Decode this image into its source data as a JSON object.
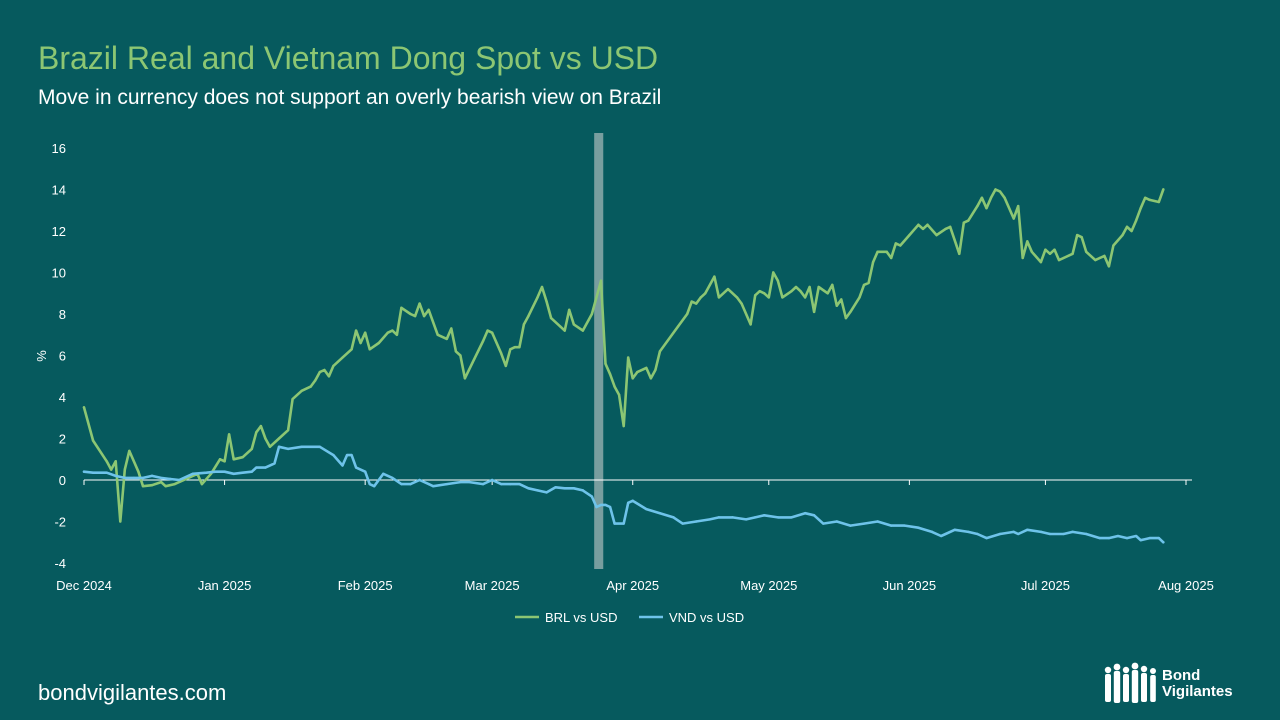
{
  "title": "Brazil Real and Vietnam Dong Spot vs USD",
  "subtitle": "Move in currency does not support an overly bearish view on Brazil",
  "footer": {
    "url": "bondvigilantes.com"
  },
  "logo": {
    "line1": "Bond",
    "line2": "Vigilantes"
  },
  "colors": {
    "background": "#065a5e",
    "title": "#8cc673",
    "brl": "#8cc673",
    "vnd": "#6ec3ea",
    "highlight": "#9fb5b6"
  },
  "chart_data": {
    "type": "line",
    "title": "Brazil Real and Vietnam Dong Spot vs USD",
    "xlabel": "",
    "ylabel": "%",
    "ylim": [
      -4,
      16
    ],
    "yticks": [
      -4,
      -2,
      0,
      2,
      4,
      6,
      8,
      10,
      12,
      14,
      16
    ],
    "xlim": [
      0,
      243
    ],
    "xticks": [
      {
        "label": "Dec 2024",
        "x": 0
      },
      {
        "label": "Jan 2025",
        "x": 31
      },
      {
        "label": "Feb 2025",
        "x": 62
      },
      {
        "label": "Mar 2025",
        "x": 90
      },
      {
        "label": "Apr 2025",
        "x": 121
      },
      {
        "label": "May 2025",
        "x": 151
      },
      {
        "label": "Jun 2025",
        "x": 182
      },
      {
        "label": "Jul 2025",
        "x": 212
      },
      {
        "label": "Aug 2025",
        "x": 243
      }
    ],
    "highlight_band": {
      "x_start": 112.5,
      "x_end": 114.5,
      "label": ""
    },
    "legend": [
      "BRL vs USD",
      "VND vs USD"
    ],
    "series": [
      {
        "name": "BRL vs USD",
        "color": "#8cc673",
        "points": [
          [
            0,
            3.5
          ],
          [
            2,
            1.9
          ],
          [
            5,
            0.9
          ],
          [
            6,
            0.5
          ],
          [
            7,
            0.9
          ],
          [
            8,
            -2.0
          ],
          [
            9,
            0.5
          ],
          [
            10,
            1.4
          ],
          [
            12,
            0.4
          ],
          [
            13,
            -0.3
          ],
          [
            15,
            -0.25
          ],
          [
            17,
            -0.1
          ],
          [
            18,
            -0.3
          ],
          [
            20,
            -0.2
          ],
          [
            23,
            0.1
          ],
          [
            25,
            0.3
          ],
          [
            26,
            -0.2
          ],
          [
            28,
            0.3
          ],
          [
            30,
            1.0
          ],
          [
            31,
            0.9
          ],
          [
            32,
            2.2
          ],
          [
            33,
            1.0
          ],
          [
            35,
            1.1
          ],
          [
            37,
            1.5
          ],
          [
            38,
            2.3
          ],
          [
            39,
            2.6
          ],
          [
            40,
            2.0
          ],
          [
            41,
            1.6
          ],
          [
            43,
            2.0
          ],
          [
            45,
            2.4
          ],
          [
            46,
            3.9
          ],
          [
            48,
            4.3
          ],
          [
            50,
            4.5
          ],
          [
            51,
            4.8
          ],
          [
            52,
            5.2
          ],
          [
            53,
            5.3
          ],
          [
            54,
            5.0
          ],
          [
            55,
            5.5
          ],
          [
            57,
            5.9
          ],
          [
            59,
            6.3
          ],
          [
            60,
            7.2
          ],
          [
            61,
            6.6
          ],
          [
            62,
            7.1
          ],
          [
            63,
            6.3
          ],
          [
            65,
            6.6
          ],
          [
            67,
            7.1
          ],
          [
            68,
            7.2
          ],
          [
            69,
            7.0
          ],
          [
            70,
            8.3
          ],
          [
            72,
            8.0
          ],
          [
            73,
            7.9
          ],
          [
            74,
            8.5
          ],
          [
            75,
            7.9
          ],
          [
            76,
            8.2
          ],
          [
            78,
            7.0
          ],
          [
            80,
            6.8
          ],
          [
            81,
            7.3
          ],
          [
            82,
            6.2
          ],
          [
            83,
            6.0
          ],
          [
            84,
            4.9
          ],
          [
            86,
            5.8
          ],
          [
            88,
            6.7
          ],
          [
            89,
            7.2
          ],
          [
            90,
            7.1
          ],
          [
            92,
            6.1
          ],
          [
            93,
            5.5
          ],
          [
            94,
            6.3
          ],
          [
            95,
            6.4
          ],
          [
            96,
            6.4
          ],
          [
            97,
            7.5
          ],
          [
            98,
            7.9
          ],
          [
            100,
            8.8
          ],
          [
            101,
            9.3
          ],
          [
            102,
            8.6
          ],
          [
            103,
            7.8
          ],
          [
            105,
            7.4
          ],
          [
            106,
            7.2
          ],
          [
            107,
            8.2
          ],
          [
            108,
            7.5
          ],
          [
            110,
            7.2
          ],
          [
            112,
            8.0
          ],
          [
            114,
            9.6
          ],
          [
            115,
            5.6
          ],
          [
            116,
            5.1
          ],
          [
            117,
            4.5
          ],
          [
            118,
            4.1
          ],
          [
            119,
            2.6
          ],
          [
            120,
            5.9
          ],
          [
            121,
            4.9
          ],
          [
            122,
            5.2
          ],
          [
            124,
            5.4
          ],
          [
            125,
            4.9
          ],
          [
            126,
            5.3
          ],
          [
            127,
            6.2
          ],
          [
            129,
            6.8
          ],
          [
            131,
            7.4
          ],
          [
            133,
            8.0
          ],
          [
            134,
            8.6
          ],
          [
            135,
            8.5
          ],
          [
            136,
            8.8
          ],
          [
            137,
            9.0
          ],
          [
            139,
            9.8
          ],
          [
            140,
            8.8
          ],
          [
            142,
            9.2
          ],
          [
            144,
            8.8
          ],
          [
            145,
            8.5
          ],
          [
            147,
            7.5
          ],
          [
            148,
            8.9
          ],
          [
            149,
            9.1
          ],
          [
            150,
            9.0
          ],
          [
            151,
            8.8
          ],
          [
            152,
            10.0
          ],
          [
            153,
            9.6
          ],
          [
            154,
            8.8
          ],
          [
            156,
            9.1
          ],
          [
            157,
            9.3
          ],
          [
            158,
            9.1
          ],
          [
            159,
            8.8
          ],
          [
            160,
            9.3
          ],
          [
            161,
            8.1
          ],
          [
            162,
            9.3
          ],
          [
            164,
            9.0
          ],
          [
            165,
            9.4
          ],
          [
            166,
            8.4
          ],
          [
            167,
            8.7
          ],
          [
            168,
            7.8
          ],
          [
            169,
            8.1
          ],
          [
            171,
            8.8
          ],
          [
            172,
            9.4
          ],
          [
            173,
            9.5
          ],
          [
            174,
            10.5
          ],
          [
            175,
            11.0
          ],
          [
            177,
            11.0
          ],
          [
            178,
            10.7
          ],
          [
            179,
            11.4
          ],
          [
            180,
            11.3
          ],
          [
            182,
            11.8
          ],
          [
            184,
            12.3
          ],
          [
            185,
            12.1
          ],
          [
            186,
            12.3
          ],
          [
            188,
            11.8
          ],
          [
            190,
            12.1
          ],
          [
            191,
            12.2
          ],
          [
            193,
            10.9
          ],
          [
            194,
            12.4
          ],
          [
            195,
            12.5
          ],
          [
            197,
            13.2
          ],
          [
            198,
            13.6
          ],
          [
            199,
            13.1
          ],
          [
            200,
            13.6
          ],
          [
            201,
            14.0
          ],
          [
            202,
            13.9
          ],
          [
            203,
            13.6
          ],
          [
            205,
            12.6
          ],
          [
            206,
            13.2
          ],
          [
            207,
            10.7
          ],
          [
            208,
            11.5
          ],
          [
            209,
            11.0
          ],
          [
            211,
            10.5
          ],
          [
            212,
            11.1
          ],
          [
            213,
            10.9
          ],
          [
            214,
            11.1
          ],
          [
            215,
            10.6
          ],
          [
            216,
            10.7
          ],
          [
            218,
            10.9
          ],
          [
            219,
            11.8
          ],
          [
            220,
            11.7
          ],
          [
            221,
            11.0
          ],
          [
            223,
            10.6
          ],
          [
            224,
            10.7
          ],
          [
            225,
            10.8
          ],
          [
            226,
            10.3
          ],
          [
            227,
            11.3
          ],
          [
            229,
            11.8
          ],
          [
            230,
            12.2
          ],
          [
            231,
            12.0
          ],
          [
            232,
            12.5
          ],
          [
            233,
            13.1
          ],
          [
            234,
            13.6
          ],
          [
            235,
            13.5
          ],
          [
            237,
            13.4
          ],
          [
            238,
            14.0
          ]
        ]
      },
      {
        "name": "VND vs USD",
        "color": "#6ec3ea",
        "points": [
          [
            0,
            0.4
          ],
          [
            2,
            0.35
          ],
          [
            5,
            0.35
          ],
          [
            7,
            0.2
          ],
          [
            9,
            0.1
          ],
          [
            11,
            0.1
          ],
          [
            13,
            0.1
          ],
          [
            15,
            0.2
          ],
          [
            17,
            0.1
          ],
          [
            19,
            0.05
          ],
          [
            21,
            0.0
          ],
          [
            24,
            0.3
          ],
          [
            27,
            0.35
          ],
          [
            29,
            0.4
          ],
          [
            31,
            0.4
          ],
          [
            33,
            0.3
          ],
          [
            35,
            0.35
          ],
          [
            37,
            0.4
          ],
          [
            38,
            0.6
          ],
          [
            40,
            0.6
          ],
          [
            42,
            0.8
          ],
          [
            43,
            1.6
          ],
          [
            45,
            1.5
          ],
          [
            48,
            1.6
          ],
          [
            50,
            1.6
          ],
          [
            52,
            1.6
          ],
          [
            55,
            1.2
          ],
          [
            57,
            0.7
          ],
          [
            58,
            1.2
          ],
          [
            59,
            1.2
          ],
          [
            60,
            0.6
          ],
          [
            62,
            0.4
          ],
          [
            63,
            -0.2
          ],
          [
            64,
            -0.3
          ],
          [
            66,
            0.3
          ],
          [
            68,
            0.1
          ],
          [
            70,
            -0.2
          ],
          [
            72,
            -0.2
          ],
          [
            74,
            0.0
          ],
          [
            76,
            -0.2
          ],
          [
            77,
            -0.3
          ],
          [
            80,
            -0.2
          ],
          [
            83,
            -0.1
          ],
          [
            85,
            -0.1
          ],
          [
            88,
            -0.2
          ],
          [
            90,
            0.0
          ],
          [
            92,
            -0.2
          ],
          [
            94,
            -0.2
          ],
          [
            96,
            -0.2
          ],
          [
            98,
            -0.4
          ],
          [
            100,
            -0.5
          ],
          [
            102,
            -0.6
          ],
          [
            104,
            -0.35
          ],
          [
            106,
            -0.4
          ],
          [
            108,
            -0.4
          ],
          [
            110,
            -0.5
          ],
          [
            112,
            -0.8
          ],
          [
            113,
            -1.3
          ],
          [
            114,
            -1.2
          ],
          [
            115,
            -1.2
          ],
          [
            116,
            -1.3
          ],
          [
            117,
            -2.1
          ],
          [
            119,
            -2.1
          ],
          [
            120,
            -1.1
          ],
          [
            121,
            -1.0
          ],
          [
            124,
            -1.4
          ],
          [
            127,
            -1.6
          ],
          [
            130,
            -1.8
          ],
          [
            132,
            -2.1
          ],
          [
            135,
            -2.0
          ],
          [
            138,
            -1.9
          ],
          [
            140,
            -1.8
          ],
          [
            143,
            -1.8
          ],
          [
            146,
            -1.9
          ],
          [
            148,
            -1.8
          ],
          [
            150,
            -1.7
          ],
          [
            153,
            -1.8
          ],
          [
            156,
            -1.8
          ],
          [
            159,
            -1.6
          ],
          [
            161,
            -1.7
          ],
          [
            163,
            -2.1
          ],
          [
            166,
            -2.0
          ],
          [
            169,
            -2.2
          ],
          [
            172,
            -2.1
          ],
          [
            175,
            -2.0
          ],
          [
            178,
            -2.2
          ],
          [
            181,
            -2.2
          ],
          [
            184,
            -2.3
          ],
          [
            187,
            -2.5
          ],
          [
            189,
            -2.7
          ],
          [
            190,
            -2.6
          ],
          [
            192,
            -2.4
          ],
          [
            195,
            -2.5
          ],
          [
            197,
            -2.6
          ],
          [
            199,
            -2.8
          ],
          [
            202,
            -2.6
          ],
          [
            205,
            -2.5
          ],
          [
            206,
            -2.6
          ],
          [
            208,
            -2.4
          ],
          [
            211,
            -2.5
          ],
          [
            213,
            -2.6
          ],
          [
            216,
            -2.6
          ],
          [
            218,
            -2.5
          ],
          [
            221,
            -2.6
          ],
          [
            224,
            -2.8
          ],
          [
            226,
            -2.8
          ],
          [
            228,
            -2.7
          ],
          [
            230,
            -2.8
          ],
          [
            232,
            -2.7
          ],
          [
            233,
            -2.9
          ],
          [
            235,
            -2.8
          ],
          [
            237,
            -2.8
          ],
          [
            238,
            -3.0
          ]
        ]
      }
    ]
  }
}
